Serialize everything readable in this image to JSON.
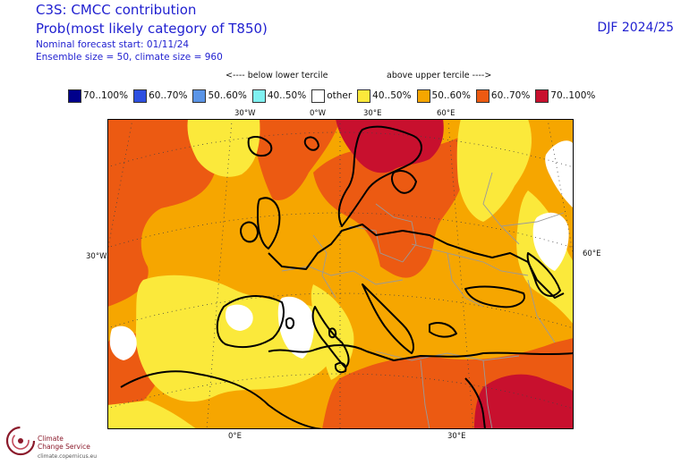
{
  "header": {
    "line1": "C3S: CMCC contribution",
    "line2": "Prob(most likely category of T850)",
    "line3": "Nominal forecast start: 01/11/24",
    "line4": "Ensemble size = 50, climate size = 960",
    "season": "DJF 2024/25"
  },
  "annotations": {
    "below": "<---- below lower tercile",
    "above": "above upper tercile ---->"
  },
  "legend": [
    {
      "label": "70..100%",
      "color": "#00008b"
    },
    {
      "label": "60..70%",
      "color": "#2d4fe0"
    },
    {
      "label": "50..60%",
      "color": "#5a94e6"
    },
    {
      "label": "40..50%",
      "color": "#7ff0f0"
    },
    {
      "label": "other",
      "color": "#ffffff"
    },
    {
      "label": "40..50%",
      "color": "#fbe93b"
    },
    {
      "label": "50..60%",
      "color": "#f6a600"
    },
    {
      "label": "60..70%",
      "color": "#ec5a12"
    },
    {
      "label": "70..100%",
      "color": "#c8102e"
    }
  ],
  "map": {
    "projection": "Lambert conformal, Europe",
    "ticks": {
      "top": [
        "30°W",
        "0°W",
        "30°E",
        "60°E"
      ],
      "left": "30°W",
      "right": "60°E",
      "bottom": [
        "0°E",
        "30°E"
      ]
    }
  },
  "logo": {
    "line1": "Climate",
    "line2": "Change Service",
    "url": "climate.copernicus.eu",
    "color": "#8b1a2b"
  }
}
